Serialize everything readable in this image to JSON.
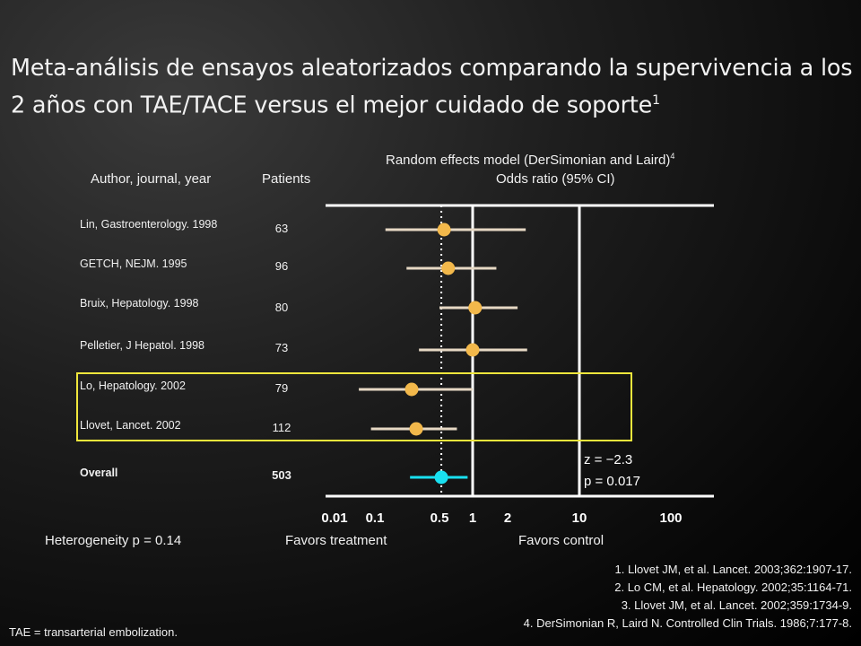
{
  "slide": {
    "title": "Meta-análisis de ensayos aleatorizados comparando  la supervivencia a los 2 años con TAE/TACE versus el mejor cuidado de soporte",
    "title_ref": "1"
  },
  "headers": {
    "author": "Author, journal, year",
    "patients": "Patients",
    "model": "Random effects model (DerSimonian and Laird)",
    "model_ref": "4",
    "odds": "Odds ratio (95% CI)"
  },
  "heterogeneity": "Heterogeneity p = 0.14",
  "favors_treatment": "Favors treatment",
  "favors_control": "Favors control",
  "z_stat": "z = −2.3",
  "p_value": "p = 0.017",
  "references": [
    "1. Llovet JM, et al. Lancet. 2003;362:1907-17.",
    "2. Lo CM, et al. Hepatology. 2002;35:1164-71.",
    "3. Llovet JM, et al. Lancet. 2002;359:1734-9.",
    "4. DerSimonian R, Laird N. Controlled Clin Trials. 1986;7:177-8."
  ],
  "footnote": "TAE = transarterial embolization.",
  "colors": {
    "study_marker": "#f2b84b",
    "overall_marker": "#19e0f0",
    "study_ci": "#e6d8c4",
    "overall_ci": "#19e0f0",
    "highlight_box": "#f0e63c",
    "axis": "#ffffff"
  },
  "chart_data": {
    "type": "forest",
    "x_scale": "log",
    "x_ticks": [
      "0.01",
      "0.1",
      "0.5",
      "1",
      "2",
      "10",
      "100"
    ],
    "reference_line": 1,
    "pooled_line": 0.52,
    "studies": [
      {
        "label": "Lin, Gastroenterology. 1998",
        "patients": "63",
        "or": 0.55,
        "lo": 0.13,
        "hi": 3.0
      },
      {
        "label": "GETCH, NEJM. 1995",
        "patients": "96",
        "or": 0.6,
        "lo": 0.22,
        "hi": 1.6
      },
      {
        "label": "Bruix, Hepatology. 1998",
        "patients": "80",
        "or": 1.05,
        "lo": 0.5,
        "hi": 2.5
      },
      {
        "label": "Pelletier, J Hepatol. 1998",
        "patients": "73",
        "or": 1.0,
        "lo": 0.3,
        "hi": 3.1
      },
      {
        "label": "Lo, Hepatology. 2002",
        "patients": "79",
        "or": 0.25,
        "lo": 0.04,
        "hi": 1.0
      },
      {
        "label": "Llovet, Lancet. 2002",
        "patients": "112",
        "or": 0.28,
        "lo": 0.08,
        "hi": 0.72
      },
      {
        "label": "Overall",
        "patients": "503",
        "or": 0.52,
        "lo": 0.24,
        "hi": 0.9,
        "overall": true
      }
    ],
    "highlighted": [
      "Lo, Hepatology. 2002",
      "Llovet, Lancet. 2002"
    ]
  }
}
